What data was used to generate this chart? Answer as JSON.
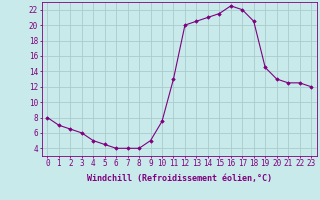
{
  "x": [
    0,
    1,
    2,
    3,
    4,
    5,
    6,
    7,
    8,
    9,
    10,
    11,
    12,
    13,
    14,
    15,
    16,
    17,
    18,
    19,
    20,
    21,
    22,
    23
  ],
  "y": [
    8,
    7,
    6.5,
    6,
    5,
    4.5,
    4,
    4,
    4,
    5,
    7.5,
    13,
    20,
    20.5,
    21,
    21.5,
    22.5,
    22,
    20.5,
    14.5,
    13,
    12.5,
    12.5,
    12
  ],
  "line_color": "#800080",
  "marker_color": "#800080",
  "bg_color": "#c8eaea",
  "grid_color": "#aacccc",
  "axis_color": "#800080",
  "xlabel": "Windchill (Refroidissement éolien,°C)",
  "xlabel_fontsize": 6.0,
  "tick_fontsize": 5.5,
  "ylim": [
    3,
    23
  ],
  "yticks": [
    4,
    6,
    8,
    10,
    12,
    14,
    16,
    18,
    20,
    22
  ],
  "xlim": [
    -0.5,
    23.5
  ]
}
